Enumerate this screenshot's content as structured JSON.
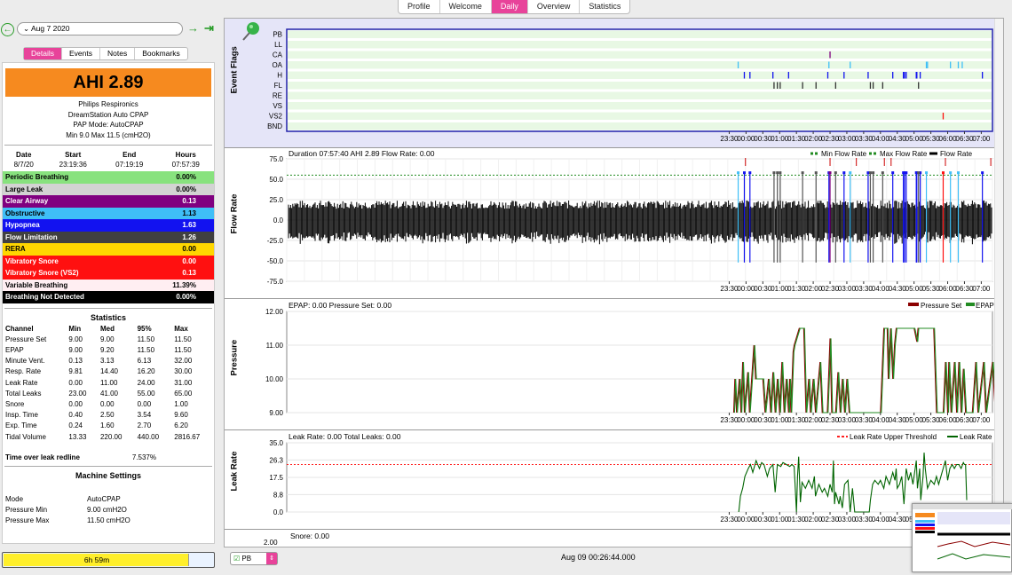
{
  "top_tabs": [
    "Profile",
    "Welcome",
    "Daily",
    "Overview",
    "Statistics"
  ],
  "active_top_tab": "Daily",
  "date": "Aug 7 2020",
  "sub_tabs": [
    "Details",
    "Events",
    "Notes",
    "Bookmarks"
  ],
  "active_sub_tab": "Details",
  "ahi": "AHI 2.89",
  "machine": {
    "brand": "Philips Respironics",
    "model": "DreamStation Auto CPAP",
    "mode": "PAP Mode: AutoCPAP",
    "pressure": "Min 9.0 Max 11.5 (cmH2O)"
  },
  "session": {
    "headers": [
      "Date",
      "Start",
      "End",
      "Hours"
    ],
    "row": [
      "8/7/20",
      "23:19:36",
      "07:19:19",
      "07:57:39"
    ]
  },
  "events": [
    {
      "label": "Periodic Breathing",
      "value": "0.00%",
      "bg": "#88e27e",
      "fg": "#000"
    },
    {
      "label": "Large Leak",
      "value": "0.00%",
      "bg": "#d3d3d3",
      "fg": "#000"
    },
    {
      "label": "Clear Airway",
      "value": "0.13",
      "bg": "#800080",
      "fg": "#fff"
    },
    {
      "label": "Obstructive",
      "value": "1.13",
      "bg": "#3fbff7",
      "fg": "#000"
    },
    {
      "label": "Hypopnea",
      "value": "1.63",
      "bg": "#1212f0",
      "fg": "#fff"
    },
    {
      "label": "Flow Limitation",
      "value": "1.26",
      "bg": "#404040",
      "fg": "#fff"
    },
    {
      "label": "RERA",
      "value": "0.00",
      "bg": "#ffd700",
      "fg": "#000"
    },
    {
      "label": "Vibratory Snore",
      "value": "0.00",
      "bg": "#ff1010",
      "fg": "#fff"
    },
    {
      "label": "Vibratory Snore (VS2)",
      "value": "0.13",
      "bg": "#ff1010",
      "fg": "#fff"
    },
    {
      "label": "Variable Breathing",
      "value": "11.39%",
      "bg": "#ffeef2",
      "fg": "#000"
    },
    {
      "label": "Breathing Not Detected",
      "value": "0.00%",
      "bg": "#000000",
      "fg": "#fff"
    }
  ],
  "statistics": {
    "title": "Statistics",
    "headers": [
      "Channel",
      "Min",
      "Med",
      "95%",
      "Max"
    ],
    "rows": [
      [
        "Pressure Set",
        "9.00",
        "9.00",
        "11.50",
        "11.50"
      ],
      [
        "EPAP",
        "9.00",
        "9.20",
        "11.50",
        "11.50"
      ],
      [
        "Minute Vent.",
        "0.13",
        "3.13",
        "6.13",
        "32.00"
      ],
      [
        "Resp. Rate",
        "9.81",
        "14.40",
        "16.20",
        "30.00"
      ],
      [
        "Leak Rate",
        "0.00",
        "11.00",
        "24.00",
        "31.00"
      ],
      [
        "Total Leaks",
        "23.00",
        "41.00",
        "55.00",
        "65.00"
      ],
      [
        "Snore",
        "0.00",
        "0.00",
        "0.00",
        "1.00"
      ],
      [
        "Insp. Time",
        "0.40",
        "2.50",
        "3.54",
        "9.60"
      ],
      [
        "Exp. Time",
        "0.24",
        "1.60",
        "2.70",
        "6.20"
      ],
      [
        "Tidal Volume",
        "13.33",
        "220.00",
        "440.00",
        "2816.67"
      ]
    ]
  },
  "time_over_leak": {
    "label": "Time over leak redline",
    "value": "7.537%"
  },
  "machine_settings": {
    "title": "Machine Settings",
    "rows": [
      [
        "Mode",
        "AutoCPAP"
      ],
      [
        "Pressure Min",
        "9.00 cmH2O"
      ],
      [
        "Pressure Max",
        "11.50 cmH2O"
      ]
    ]
  },
  "progress": {
    "label": "6h 59m",
    "fraction": 0.88
  },
  "time_ticks": [
    "23:30",
    "00:00",
    "00:30",
    "01:00",
    "01:30",
    "02:00",
    "02:30",
    "03:00",
    "03:30",
    "04:00",
    "04:30",
    "05:00",
    "05:30",
    "06:00",
    "06:30",
    "07:00"
  ],
  "event_flags": {
    "title": "Event Flags",
    "channels": [
      "PB",
      "LL",
      "CA",
      "OA",
      "H",
      "FL",
      "RE",
      "VS",
      "VS2",
      "BND"
    ]
  },
  "flow": {
    "title": "Flow Rate",
    "header": "Duration 07:57:40 AHI 2.89 Flow Rate: 0.00",
    "legend": [
      "Min Flow Rate",
      "Max Flow Rate",
      "Flow Rate"
    ],
    "yticks": [
      "75.0",
      "50.0",
      "25.0",
      "0.0",
      "-25.0",
      "-50.0",
      "-75.0"
    ]
  },
  "pressure": {
    "title": "Pressure",
    "header": "EPAP: 0.00 Pressure Set: 0.00",
    "legend": [
      "Pressure Set",
      "EPAP"
    ],
    "yticks": [
      "12.00",
      "11.00",
      "10.00",
      "9.00"
    ]
  },
  "leak": {
    "title": "Leak Rate",
    "header": "Leak Rate: 0.00 Total Leaks: 0.00",
    "legend": [
      "Leak Rate Upper Threshold",
      "Leak Rate"
    ],
    "yticks": [
      "35.0",
      "26.3",
      "17.5",
      "8.8",
      "0.0"
    ]
  },
  "snore": {
    "header": "Snore: 0.00",
    "ytick": "2.00"
  },
  "bottom": {
    "selector": "PB",
    "time": "Aug 09 00:26:44.000"
  }
}
